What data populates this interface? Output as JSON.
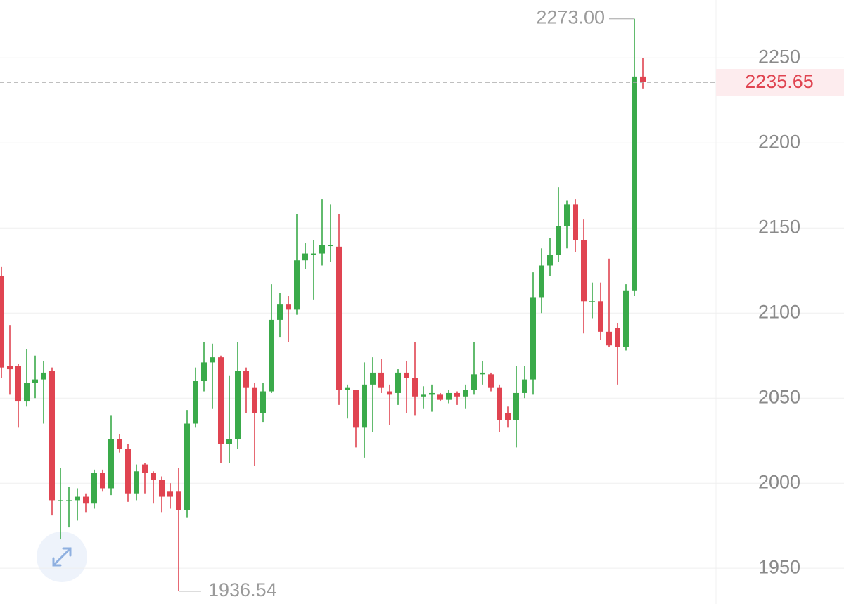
{
  "chart_data": {
    "type": "candlestick",
    "up_color": "#3aaa4a",
    "down_color": "#e04451",
    "grid": true,
    "ylim": [
      1929,
      2284
    ],
    "yticks": [
      1950,
      2000,
      2050,
      2100,
      2150,
      2200,
      2250
    ],
    "open": [
      2122,
      2069,
      2069,
      2048,
      2059,
      2061,
      2066,
      1990,
      1990,
      1990,
      1992,
      1988,
      2006,
      1997,
      2026,
      2020,
      1994,
      2011,
      2006,
      2002,
      1995,
      1995,
      1984,
      2035,
      2060,
      2071,
      2074,
      2023,
      2026,
      2066,
      2056,
      2041,
      2054,
      2096,
      2105,
      2102,
      2131,
      2135,
      2135,
      2140,
      2139,
      2055,
      2055,
      2033,
      2058,
      2065,
      2054,
      2053,
      2065,
      2062,
      2051,
      2052,
      2052,
      2049,
      2053,
      2051,
      2055,
      2064,
      2064,
      2056,
      2041,
      2037,
      2053,
      2061,
      2109,
      2128,
      2134,
      2151,
      2164,
      2143,
      2107,
      2107,
      2089,
      2091,
      2080,
      2113,
      2239
    ],
    "high": [
      2127,
      2093,
      2070,
      2079,
      2075,
      2072,
      2068,
      2009,
      1998,
      1997,
      1994,
      2008,
      2008,
      2040,
      2029,
      2023,
      2011,
      2012,
      2007,
      2004,
      2000,
      2009,
      2043,
      2068,
      2083,
      2082,
      2075,
      2063,
      2083,
      2068,
      2059,
      2059,
      2117,
      2112,
      2110,
      2158,
      2141,
      2143,
      2167,
      2164,
      2158,
      2058,
      2055,
      2071,
      2074,
      2073,
      2058,
      2067,
      2072,
      2083,
      2057,
      2058,
      2053,
      2055,
      2054,
      2058,
      2083,
      2072,
      2065,
      2058,
      2045,
      2069,
      2069,
      2124,
      2138,
      2144,
      2174,
      2166,
      2167,
      2155,
      2118,
      2118,
      2132,
      2094,
      2117,
      2273,
      2250
    ],
    "low": [
      2062,
      2052,
      2033,
      2045,
      2050,
      2035,
      1981,
      1967,
      1974,
      1978,
      1983,
      1985,
      1995,
      1993,
      2018,
      1989,
      1990,
      1994,
      1988,
      1983,
      1985,
      1936.54,
      1980,
      2033,
      2054,
      2044,
      2012,
      2012,
      2020,
      2041,
      2010,
      2036,
      2053,
      2086,
      2083,
      2099,
      2126,
      2108,
      2128,
      2130,
      2046,
      2038,
      2021,
      2015,
      2030,
      2053,
      2034,
      2046,
      2041,
      2040,
      2044,
      2042,
      2048,
      2047,
      2046,
      2044,
      2052,
      2058,
      2054,
      2030,
      2033,
      2021,
      2050,
      2052,
      2100,
      2122,
      2130,
      2138,
      2136,
      2088,
      2097,
      2084,
      2080,
      2058,
      2078,
      2110,
      2232
    ],
    "close": [
      2068,
      2067,
      2048,
      2059,
      2061,
      2065,
      1990,
      1990,
      1990,
      1992,
      1988,
      2006,
      1997,
      2026,
      2020,
      1994,
      2007,
      2006,
      2002,
      1992,
      1992,
      1984,
      2035,
      2060,
      2071,
      2074,
      2023,
      2026,
      2066,
      2056,
      2041,
      2054,
      2096,
      2105,
      2102,
      2131,
      2135,
      2135,
      2140,
      2140,
      2055,
      2056,
      2033,
      2058,
      2065,
      2056,
      2052,
      2065,
      2062,
      2051,
      2052,
      2053,
      2049,
      2053,
      2051,
      2055,
      2064,
      2065,
      2056,
      2037,
      2037,
      2053,
      2061,
      2109,
      2128,
      2134,
      2151,
      2164,
      2143,
      2107,
      2107,
      2089,
      2081,
      2080,
      2113,
      2239,
      2235.65
    ],
    "max_label": {
      "value": 2273,
      "label": "2273.00"
    }
  }
}
